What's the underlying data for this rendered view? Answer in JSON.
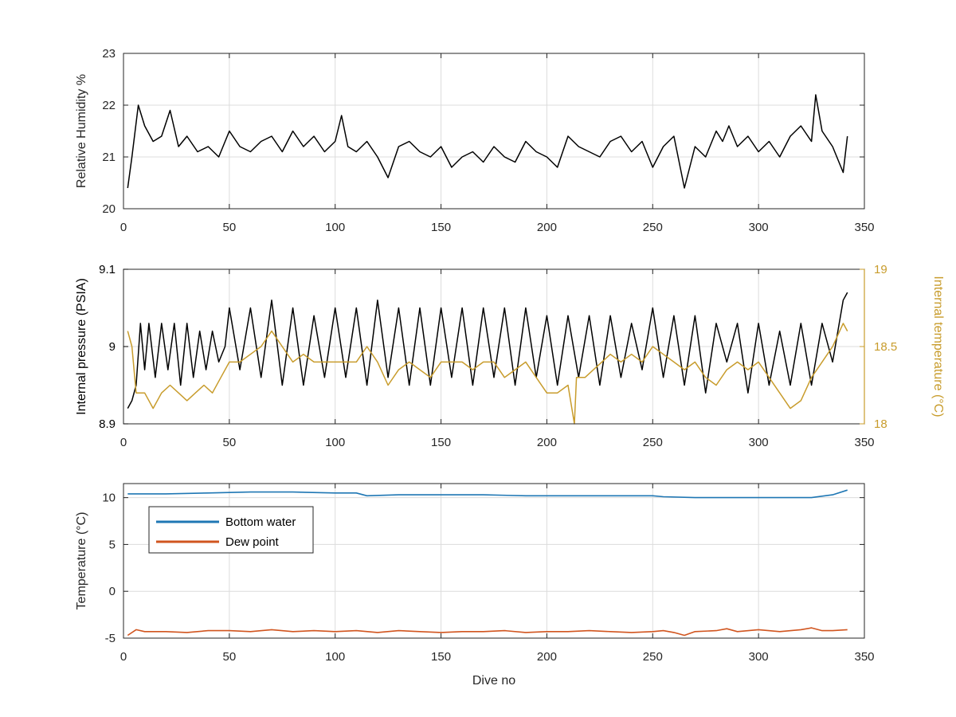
{
  "colors": {
    "black": "#000000",
    "temperature_orange": "#C89C2C",
    "bottom_water_blue": "#1F77B4",
    "dew_point_orange": "#D1551F",
    "grid": "#DCDCDC",
    "axis": "#262626"
  },
  "chart_data": [
    {
      "type": "line",
      "title": "",
      "xlabel": "",
      "ylabel": "Relative Humidity %",
      "xlim": [
        0,
        350
      ],
      "ylim": [
        20,
        23
      ],
      "x_ticks": [
        0,
        50,
        100,
        150,
        200,
        250,
        300,
        350
      ],
      "y_ticks": [
        20,
        21,
        22,
        23
      ],
      "grid": true,
      "series": [
        {
          "color": "#000000",
          "x": [
            2,
            4,
            7,
            10,
            14,
            18,
            22,
            26,
            30,
            35,
            40,
            45,
            50,
            55,
            60,
            65,
            70,
            75,
            80,
            85,
            90,
            95,
            100,
            103,
            106,
            110,
            115,
            120,
            125,
            130,
            135,
            140,
            145,
            150,
            155,
            160,
            165,
            170,
            175,
            180,
            185,
            190,
            195,
            200,
            205,
            210,
            215,
            220,
            225,
            230,
            235,
            240,
            245,
            250,
            255,
            260,
            265,
            270,
            275,
            280,
            283,
            286,
            290,
            295,
            300,
            305,
            310,
            315,
            320,
            325,
            327,
            330,
            335,
            340,
            342
          ],
          "y": [
            20.4,
            21.0,
            22.0,
            21.6,
            21.3,
            21.4,
            21.9,
            21.2,
            21.4,
            21.1,
            21.2,
            21.0,
            21.5,
            21.2,
            21.1,
            21.3,
            21.4,
            21.1,
            21.5,
            21.2,
            21.4,
            21.1,
            21.3,
            21.8,
            21.2,
            21.1,
            21.3,
            21.0,
            20.6,
            21.2,
            21.3,
            21.1,
            21.0,
            21.2,
            20.8,
            21.0,
            21.1,
            20.9,
            21.2,
            21.0,
            20.9,
            21.3,
            21.1,
            21.0,
            20.8,
            21.4,
            21.2,
            21.1,
            21.0,
            21.3,
            21.4,
            21.1,
            21.3,
            20.8,
            21.2,
            21.4,
            20.4,
            21.2,
            21.0,
            21.5,
            21.3,
            21.6,
            21.2,
            21.4,
            21.1,
            21.3,
            21.0,
            21.4,
            21.6,
            21.3,
            22.2,
            21.5,
            21.2,
            20.7,
            21.4
          ]
        }
      ]
    },
    {
      "type": "line",
      "title": "",
      "xlabel": "",
      "ylabel": "Internal pressure (PSIA)",
      "y2label": "Internal temperature (°C)",
      "xlim": [
        0,
        350
      ],
      "ylim": [
        8.9,
        9.1
      ],
      "y2lim": [
        18,
        19
      ],
      "x_ticks": [
        0,
        50,
        100,
        150,
        200,
        250,
        300,
        350
      ],
      "y_ticks": [
        8.9,
        9,
        9.1
      ],
      "y2_ticks": [
        18,
        18.5,
        19
      ],
      "grid": true,
      "series": [
        {
          "axis": "left",
          "color": "#000000",
          "x": [
            2,
            4,
            6,
            8,
            10,
            12,
            15,
            18,
            21,
            24,
            27,
            30,
            33,
            36,
            39,
            42,
            45,
            48,
            50,
            55,
            60,
            65,
            70,
            75,
            80,
            85,
            90,
            95,
            100,
            105,
            110,
            115,
            120,
            125,
            130,
            135,
            140,
            145,
            150,
            155,
            160,
            165,
            170,
            175,
            180,
            185,
            190,
            195,
            200,
            205,
            210,
            215,
            220,
            225,
            230,
            235,
            240,
            245,
            250,
            255,
            260,
            265,
            270,
            275,
            280,
            285,
            290,
            295,
            300,
            305,
            310,
            315,
            320,
            325,
            330,
            335,
            340,
            342
          ],
          "y": [
            8.92,
            8.93,
            8.95,
            9.03,
            8.97,
            9.03,
            8.96,
            9.03,
            8.97,
            9.03,
            8.95,
            9.03,
            8.96,
            9.02,
            8.97,
            9.02,
            8.98,
            9.0,
            9.05,
            8.97,
            9.05,
            8.96,
            9.06,
            8.95,
            9.05,
            8.95,
            9.04,
            8.96,
            9.05,
            8.96,
            9.05,
            8.95,
            9.06,
            8.96,
            9.05,
            8.95,
            9.05,
            8.95,
            9.05,
            8.96,
            9.05,
            8.95,
            9.05,
            8.96,
            9.05,
            8.95,
            9.05,
            8.96,
            9.04,
            8.95,
            9.04,
            8.96,
            9.04,
            8.95,
            9.04,
            8.96,
            9.03,
            8.97,
            9.05,
            8.96,
            9.04,
            8.95,
            9.04,
            8.94,
            9.03,
            8.98,
            9.03,
            8.94,
            9.03,
            8.95,
            9.02,
            8.95,
            9.03,
            8.95,
            9.03,
            8.98,
            9.06,
            9.07
          ]
        },
        {
          "axis": "right",
          "color": "#C89C2C",
          "x": [
            2,
            4,
            6,
            10,
            14,
            18,
            22,
            26,
            30,
            34,
            38,
            42,
            46,
            50,
            55,
            60,
            65,
            70,
            75,
            80,
            85,
            90,
            95,
            100,
            105,
            110,
            115,
            120,
            125,
            130,
            135,
            140,
            145,
            150,
            155,
            160,
            165,
            170,
            175,
            180,
            185,
            190,
            195,
            200,
            205,
            210,
            213,
            214,
            218,
            222,
            226,
            230,
            235,
            240,
            245,
            250,
            255,
            260,
            265,
            270,
            275,
            280,
            285,
            290,
            295,
            300,
            305,
            310,
            315,
            320,
            325,
            330,
            335,
            340,
            342
          ],
          "y": [
            18.6,
            18.5,
            18.2,
            18.2,
            18.1,
            18.2,
            18.25,
            18.2,
            18.15,
            18.2,
            18.25,
            18.2,
            18.3,
            18.4,
            18.4,
            18.45,
            18.5,
            18.6,
            18.5,
            18.4,
            18.45,
            18.4,
            18.4,
            18.4,
            18.4,
            18.4,
            18.5,
            18.4,
            18.25,
            18.35,
            18.4,
            18.35,
            18.3,
            18.4,
            18.4,
            18.4,
            18.35,
            18.4,
            18.4,
            18.3,
            18.35,
            18.4,
            18.3,
            18.2,
            18.2,
            18.25,
            18.0,
            18.3,
            18.3,
            18.35,
            18.4,
            18.45,
            18.4,
            18.45,
            18.4,
            18.5,
            18.45,
            18.4,
            18.35,
            18.4,
            18.3,
            18.25,
            18.35,
            18.4,
            18.35,
            18.4,
            18.3,
            18.2,
            18.1,
            18.15,
            18.3,
            18.4,
            18.5,
            18.65,
            18.6
          ]
        }
      ]
    },
    {
      "type": "line",
      "title": "",
      "xlabel": "Dive no",
      "ylabel": "Temperature (°C)",
      "xlim": [
        0,
        350
      ],
      "ylim": [
        -5,
        11.5
      ],
      "x_ticks": [
        0,
        50,
        100,
        150,
        200,
        250,
        300,
        350
      ],
      "y_ticks": [
        -5,
        0,
        5,
        10
      ],
      "grid": true,
      "legend": "top-left",
      "series": [
        {
          "name": "Bottom water",
          "color": "#1F77B4",
          "x": [
            2,
            20,
            40,
            60,
            80,
            100,
            110,
            115,
            130,
            150,
            170,
            190,
            200,
            220,
            240,
            250,
            255,
            270,
            290,
            300,
            310,
            325,
            335,
            342
          ],
          "y": [
            10.4,
            10.4,
            10.5,
            10.6,
            10.6,
            10.5,
            10.5,
            10.2,
            10.3,
            10.3,
            10.3,
            10.2,
            10.2,
            10.2,
            10.2,
            10.2,
            10.1,
            10.0,
            10.0,
            10.0,
            10.0,
            10.0,
            10.3,
            10.8
          ]
        },
        {
          "name": "Dew point",
          "color": "#D1551F",
          "x": [
            2,
            6,
            10,
            20,
            30,
            40,
            50,
            60,
            70,
            80,
            90,
            100,
            110,
            120,
            130,
            140,
            150,
            160,
            170,
            180,
            190,
            200,
            210,
            220,
            230,
            240,
            250,
            255,
            260,
            265,
            270,
            280,
            285,
            290,
            300,
            310,
            320,
            325,
            330,
            335,
            342
          ],
          "y": [
            -4.7,
            -4.1,
            -4.3,
            -4.3,
            -4.4,
            -4.2,
            -4.2,
            -4.3,
            -4.1,
            -4.3,
            -4.2,
            -4.3,
            -4.2,
            -4.4,
            -4.2,
            -4.3,
            -4.4,
            -4.3,
            -4.3,
            -4.2,
            -4.4,
            -4.3,
            -4.3,
            -4.2,
            -4.3,
            -4.4,
            -4.3,
            -4.2,
            -4.4,
            -4.7,
            -4.3,
            -4.2,
            -4.0,
            -4.3,
            -4.1,
            -4.3,
            -4.1,
            -3.9,
            -4.2,
            -4.2,
            -4.1
          ]
        }
      ]
    }
  ]
}
